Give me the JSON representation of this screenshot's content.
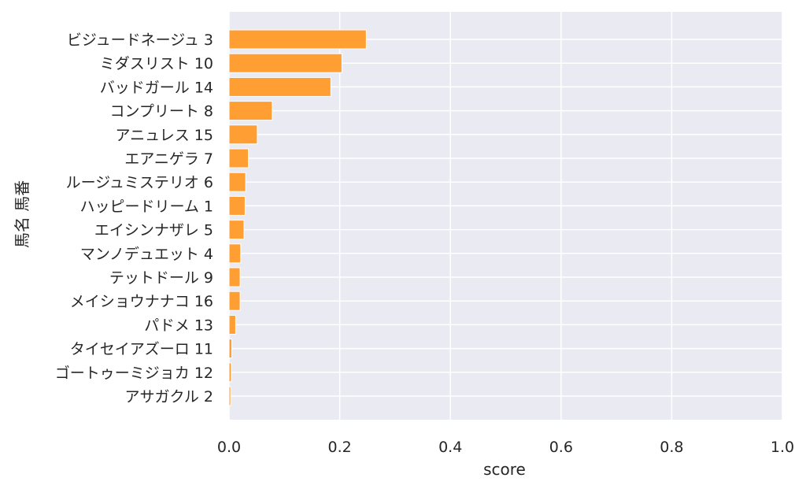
{
  "chart_data": {
    "type": "bar",
    "orientation": "horizontal",
    "categories": [
      "ビジュードネージュ 3",
      "ミダスリスト 10",
      "バッドガール 14",
      "コンプリート 8",
      "アニュレス 15",
      "エアニゲラ 7",
      "ルージュミステリオ 6",
      "ハッピードリーム 1",
      "エイシンナザレ 5",
      "マンノデュエット 4",
      "テットドール 9",
      "メイショウナナコ 16",
      "パドメ 13",
      "タイセイアズーロ 11",
      "ゴートゥーミジョカ 12",
      "アサガクル 2"
    ],
    "values": [
      0.248,
      0.204,
      0.184,
      0.078,
      0.051,
      0.035,
      0.03,
      0.029,
      0.027,
      0.021,
      0.02,
      0.02,
      0.012,
      0.005,
      0.004,
      0.003
    ],
    "xlabel": "score",
    "ylabel": "馬名 馬番",
    "xlim": [
      0,
      1.0
    ],
    "xticks": [
      "0.0",
      "0.2",
      "0.4",
      "0.6",
      "0.8",
      "1.0"
    ],
    "grid": true,
    "bar_color": "#ff9f33",
    "bar_edge_color": "#ffffff",
    "background_color": "#eaeaf2",
    "grid_color": "#ffffff"
  }
}
